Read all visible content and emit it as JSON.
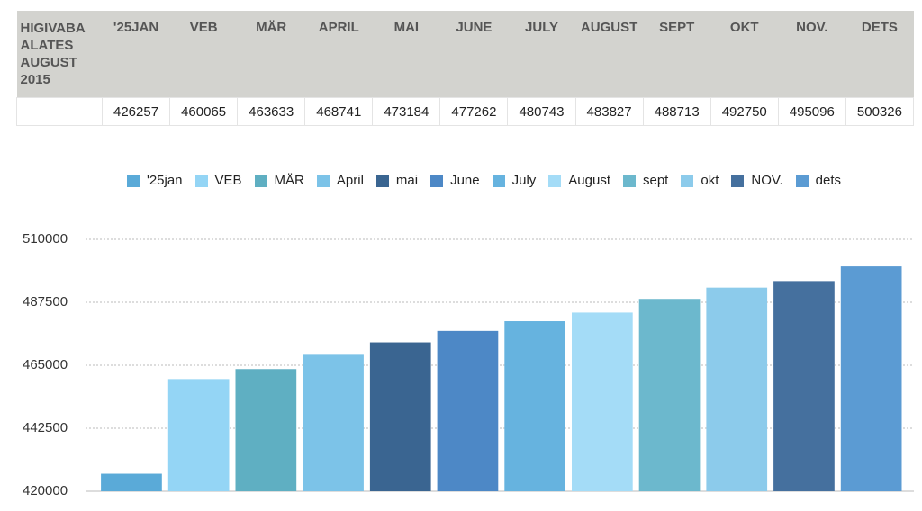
{
  "table": {
    "header": [
      "HIGIVABA ALATES AUGUST 2015",
      "'25JAN",
      "VEB",
      "MÄR",
      "APRIL",
      "MAI",
      "JUNE",
      "JULY",
      "AUGUST",
      "SEPT",
      "OKT",
      "NOV.",
      "DETS"
    ],
    "rows": [
      [
        426257,
        460065,
        463633,
        468741,
        473184,
        477262,
        480743,
        483827,
        488713,
        492750,
        495096,
        500326
      ]
    ]
  },
  "chart_data": {
    "type": "bar",
    "series": [
      {
        "name": "'25jan",
        "color": "#5aaad8",
        "values": [
          426257
        ]
      },
      {
        "name": "VEB",
        "color": "#94d5f5",
        "values": [
          460065
        ]
      },
      {
        "name": "MÄR",
        "color": "#5fafc2",
        "values": [
          463633
        ]
      },
      {
        "name": "April",
        "color": "#7cc3e8",
        "values": [
          468741
        ]
      },
      {
        "name": "mai",
        "color": "#3a6591",
        "values": [
          473184
        ]
      },
      {
        "name": "June",
        "color": "#4d88c6",
        "values": [
          477262
        ]
      },
      {
        "name": "July",
        "color": "#66b3df",
        "values": [
          480743
        ]
      },
      {
        "name": "August",
        "color": "#a4dcf7",
        "values": [
          483827
        ]
      },
      {
        "name": "sept",
        "color": "#6cb8cd",
        "values": [
          488713
        ]
      },
      {
        "name": "okt",
        "color": "#8ccbeb",
        "values": [
          492750
        ]
      },
      {
        "name": "NOV.",
        "color": "#45709e",
        "values": [
          495096
        ]
      },
      {
        "name": "dets",
        "color": "#5b9bd3",
        "values": [
          500326
        ]
      }
    ],
    "ylim": [
      420000,
      510000
    ],
    "yticks": [
      420000,
      442500,
      465000,
      487500,
      510000
    ],
    "grid": true,
    "legend": "top"
  }
}
